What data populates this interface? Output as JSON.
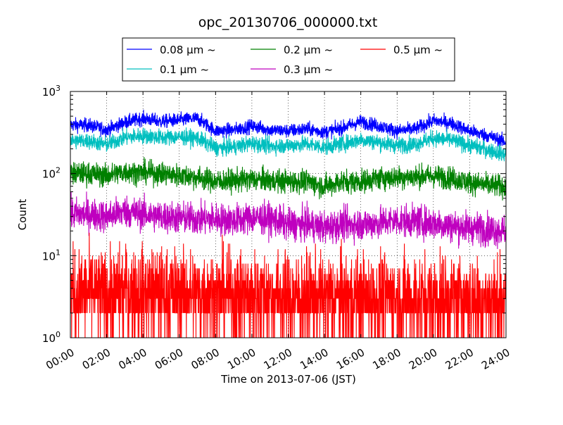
{
  "chart_data": {
    "type": "line",
    "title": "opc_20130706_000000.txt",
    "xlabel": "Time on 2013-07-06 (JST)",
    "ylabel": "Count",
    "y_scale": "log",
    "ylim": [
      1,
      1000
    ],
    "xlim": [
      "00:00",
      "24:00"
    ],
    "grid": true,
    "legend_position": "top-center (above plot)",
    "x_tick_labels": [
      "00:00",
      "02:00",
      "04:00",
      "06:00",
      "08:00",
      "10:00",
      "12:00",
      "14:00",
      "16:00",
      "18:00",
      "20:00",
      "22:00",
      "24:00"
    ],
    "y_tick_labels": [
      {
        "base": "10",
        "exp": "0"
      },
      {
        "base": "10",
        "exp": "1"
      },
      {
        "base": "10",
        "exp": "2"
      },
      {
        "base": "10",
        "exp": "3"
      }
    ],
    "x": [
      "00:00",
      "01:00",
      "02:00",
      "03:00",
      "04:00",
      "05:00",
      "06:00",
      "07:00",
      "08:00",
      "09:00",
      "10:00",
      "11:00",
      "12:00",
      "13:00",
      "14:00",
      "15:00",
      "16:00",
      "17:00",
      "18:00",
      "19:00",
      "20:00",
      "21:00",
      "22:00",
      "23:00",
      "24:00"
    ],
    "series": [
      {
        "name": "0.08 μm ~",
        "color": "#0000ff",
        "noise_db": 0.06,
        "values": [
          390,
          390,
          340,
          420,
          470,
          430,
          450,
          470,
          330,
          340,
          380,
          340,
          330,
          350,
          320,
          360,
          430,
          380,
          330,
          350,
          440,
          410,
          330,
          290,
          240
        ]
      },
      {
        "name": "0.1 μm ~",
        "color": "#00bfbf",
        "noise_db": 0.07,
        "values": [
          250,
          250,
          225,
          275,
          290,
          275,
          280,
          270,
          205,
          210,
          235,
          215,
          220,
          230,
          210,
          230,
          260,
          240,
          220,
          230,
          270,
          255,
          220,
          195,
          170
        ]
      },
      {
        "name": "0.2 μm ~",
        "color": "#008000",
        "noise_db": 0.1,
        "values": [
          100,
          100,
          95,
          105,
          103,
          100,
          95,
          90,
          80,
          82,
          85,
          83,
          80,
          80,
          70,
          80,
          80,
          88,
          90,
          92,
          93,
          88,
          78,
          72,
          70
        ]
      },
      {
        "name": "0.3 μm ~",
        "color": "#bf00bf",
        "noise_db": 0.14,
        "values": [
          32,
          32,
          30,
          35,
          32,
          30,
          29,
          28,
          28,
          27,
          29,
          28,
          24,
          24,
          22,
          24,
          24,
          25,
          27,
          26,
          25,
          23,
          22,
          21,
          20
        ]
      },
      {
        "name": "0.5 μm ~",
        "color": "#ff0000",
        "noise_db": 0.38,
        "values": [
          3.5,
          3.6,
          3.2,
          3.8,
          3.6,
          3.5,
          3.5,
          3.3,
          3.4,
          3.2,
          3.3,
          3.3,
          3.1,
          3.0,
          3.0,
          3.1,
          3.1,
          3.0,
          3.1,
          3.0,
          3.0,
          3.0,
          2.9,
          2.9,
          2.8
        ]
      }
    ]
  }
}
